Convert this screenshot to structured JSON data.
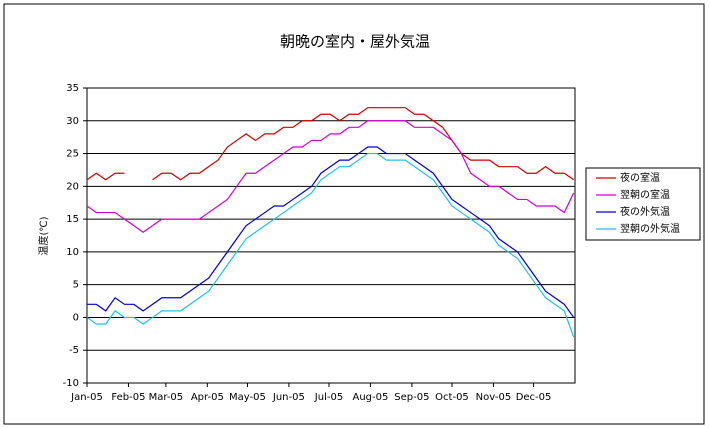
{
  "chart_data": {
    "type": "line",
    "title": "朝晩の室内・屋外気温",
    "y_label": "温度(℃)",
    "x": [
      0,
      7,
      14,
      21,
      28,
      35,
      42,
      49,
      56,
      63,
      70,
      77,
      84,
      91,
      98,
      105,
      112,
      119,
      126,
      133,
      140,
      147,
      154,
      161,
      168,
      175,
      182,
      189,
      196,
      203,
      210,
      217,
      224,
      231,
      238,
      245,
      252,
      259,
      266,
      273,
      280,
      287,
      294,
      301,
      308,
      315,
      322,
      329,
      336,
      343,
      350,
      357,
      364
    ],
    "xlim": [
      0,
      365
    ],
    "xticks": [
      {
        "value": 0,
        "label": "Jan-05"
      },
      {
        "value": 31,
        "label": "Feb-05"
      },
      {
        "value": 59,
        "label": "Mar-05"
      },
      {
        "value": 90,
        "label": "Apr-05"
      },
      {
        "value": 120,
        "label": "May-05"
      },
      {
        "value": 151,
        "label": "Jun-05"
      },
      {
        "value": 181,
        "label": "Jul-05"
      },
      {
        "value": 212,
        "label": "Aug-05"
      },
      {
        "value": 243,
        "label": "Sep-05"
      },
      {
        "value": 273,
        "label": "Oct-05"
      },
      {
        "value": 304,
        "label": "Nov-05"
      },
      {
        "value": 334,
        "label": "Dec-05"
      }
    ],
    "ylim": [
      -10,
      35
    ],
    "yticks": [
      -10,
      -5,
      0,
      5,
      10,
      15,
      20,
      25,
      30,
      35
    ],
    "grid": true,
    "legend": "right",
    "series": [
      {
        "name": "夜の室温",
        "color": "#d00000",
        "values": [
          21,
          22,
          21,
          22,
          22,
          null,
          null,
          21,
          22,
          22,
          21,
          22,
          22,
          23,
          24,
          26,
          27,
          28,
          27,
          28,
          28,
          29,
          29,
          30,
          30,
          31,
          31,
          30,
          31,
          31,
          32,
          32,
          32,
          32,
          32,
          31,
          31,
          30,
          29,
          27,
          25,
          24,
          24,
          24,
          23,
          23,
          23,
          22,
          22,
          23,
          22,
          22,
          21
        ]
      },
      {
        "name": "翌朝の室温",
        "color": "#d000d0",
        "values": [
          17,
          16,
          16,
          16,
          15,
          14,
          13,
          14,
          15,
          15,
          15,
          15,
          15,
          16,
          17,
          18,
          20,
          22,
          22,
          23,
          24,
          25,
          26,
          26,
          27,
          27,
          28,
          28,
          29,
          29,
          30,
          30,
          30,
          30,
          30,
          29,
          29,
          29,
          28,
          27,
          25,
          22,
          21,
          20,
          20,
          19,
          18,
          18,
          17,
          17,
          17,
          16,
          19
        ]
      },
      {
        "name": "夜の外気温",
        "color": "#0000d0",
        "values": [
          2,
          2,
          1,
          3,
          2,
          2,
          1,
          2,
          3,
          3,
          3,
          4,
          5,
          6,
          8,
          10,
          12,
          14,
          15,
          16,
          17,
          17,
          18,
          19,
          20,
          22,
          23,
          24,
          24,
          25,
          26,
          26,
          25,
          25,
          25,
          24,
          23,
          22,
          20,
          18,
          17,
          16,
          15,
          14,
          12,
          11,
          10,
          8,
          6,
          4,
          3,
          2,
          0
        ]
      },
      {
        "name": "翌朝の外気温",
        "color": "#20c0e8",
        "values": [
          0,
          -1,
          -1,
          1,
          0,
          0,
          -1,
          0,
          1,
          1,
          1,
          2,
          3,
          4,
          6,
          8,
          10,
          12,
          13,
          14,
          15,
          16,
          17,
          18,
          19,
          21,
          22,
          23,
          23,
          24,
          25,
          25,
          24,
          24,
          24,
          23,
          22,
          21,
          19,
          17,
          16,
          15,
          14,
          13,
          11,
          10,
          9,
          7,
          5,
          3,
          2,
          1,
          -3
        ]
      }
    ]
  }
}
